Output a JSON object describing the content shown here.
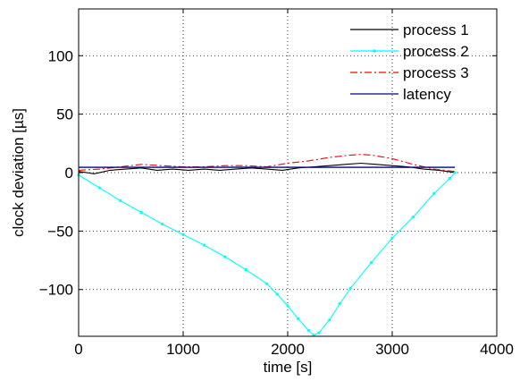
{
  "chart_data": {
    "type": "line",
    "xlabel": "time [s]",
    "ylabel": "clock deviation [µs]",
    "xlim": [
      0,
      4000
    ],
    "ylim": [
      -140,
      140
    ],
    "xticks": [
      0,
      1000,
      2000,
      3000,
      4000
    ],
    "yticks": [
      -100,
      -50,
      0,
      50,
      100
    ],
    "xtick_labels": [
      "0",
      "1000",
      "2000",
      "3000",
      "4000"
    ],
    "ytick_labels": [
      "−100",
      "−50",
      "0",
      "50",
      "100"
    ],
    "grid": true,
    "legend_position": "top-right",
    "series": [
      {
        "name": "process 1",
        "color": "#000000",
        "style": "solid",
        "x": [
          0,
          150,
          300,
          450,
          600,
          750,
          900,
          1050,
          1200,
          1350,
          1500,
          1650,
          1800,
          1950,
          2100,
          2250,
          2400,
          2550,
          2700,
          2850,
          3000,
          3150,
          3300,
          3450,
          3600
        ],
        "y": [
          1,
          -1,
          2,
          3,
          4,
          2,
          3,
          2,
          3,
          2,
          3,
          4,
          3,
          2,
          4,
          5,
          6,
          7,
          8,
          7,
          6,
          5,
          3,
          2,
          0
        ]
      },
      {
        "name": "process 2",
        "color": "#00ffff",
        "style": "solid-markers",
        "x": [
          0,
          200,
          400,
          600,
          800,
          1000,
          1200,
          1400,
          1600,
          1800,
          1900,
          2000,
          2100,
          2200,
          2250,
          2300,
          2400,
          2500,
          2600,
          2800,
          3000,
          3200,
          3400,
          3550,
          3600
        ],
        "y": [
          -2,
          -13,
          -24,
          -34,
          -44,
          -53,
          -62,
          -72,
          -83,
          -95,
          -104,
          -114,
          -125,
          -135,
          -139,
          -137,
          -126,
          -112,
          -99,
          -77,
          -56,
          -38,
          -18,
          -5,
          0
        ]
      },
      {
        "name": "process 3",
        "color": "#ff0000",
        "style": "dash-dot",
        "x": [
          0,
          200,
          400,
          600,
          800,
          1000,
          1200,
          1400,
          1600,
          1800,
          2000,
          2200,
          2400,
          2600,
          2700,
          2800,
          3000,
          3200,
          3400,
          3600
        ],
        "y": [
          2,
          3,
          5,
          7,
          6,
          5,
          5,
          6,
          6,
          5,
          8,
          10,
          13,
          15,
          15.5,
          15,
          12,
          7,
          3,
          1
        ]
      },
      {
        "name": "latency",
        "color": "#00008b",
        "style": "solid",
        "x": [
          0,
          3600
        ],
        "y": [
          4.5,
          4.5
        ]
      }
    ]
  }
}
